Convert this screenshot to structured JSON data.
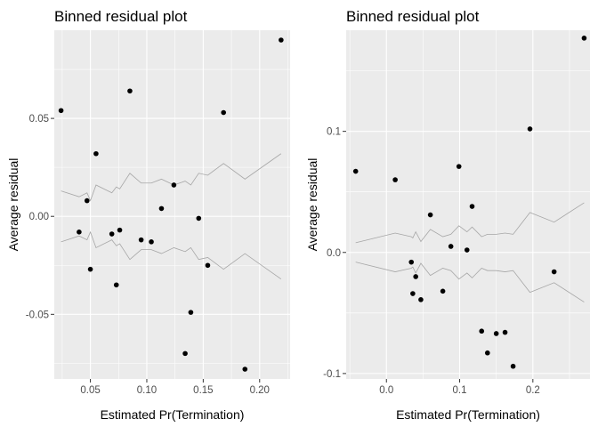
{
  "chart_data": [
    {
      "type": "scatter",
      "title": "Binned residual plot",
      "xlabel": "Estimated Pr(Termination)",
      "ylabel": "Average residual",
      "xlim": [
        0.018,
        0.227
      ],
      "ylim": [
        -0.083,
        0.095
      ],
      "xticks": [
        0.05,
        0.1,
        0.15,
        0.2
      ],
      "xtick_labels": [
        "0.05",
        "0.10",
        "0.15",
        "0.20"
      ],
      "yticks": [
        -0.05,
        0.0,
        0.05
      ],
      "ytick_labels": [
        "-0.05",
        "0.00",
        "0.05"
      ],
      "grid": true,
      "points": [
        {
          "x": 0.024,
          "y": 0.054
        },
        {
          "x": 0.04,
          "y": -0.008
        },
        {
          "x": 0.047,
          "y": 0.008
        },
        {
          "x": 0.05,
          "y": -0.027
        },
        {
          "x": 0.055,
          "y": 0.032
        },
        {
          "x": 0.069,
          "y": -0.009
        },
        {
          "x": 0.073,
          "y": -0.035
        },
        {
          "x": 0.076,
          "y": -0.007
        },
        {
          "x": 0.085,
          "y": 0.064
        },
        {
          "x": 0.095,
          "y": -0.012
        },
        {
          "x": 0.104,
          "y": -0.013
        },
        {
          "x": 0.113,
          "y": 0.004
        },
        {
          "x": 0.124,
          "y": 0.016
        },
        {
          "x": 0.134,
          "y": -0.07
        },
        {
          "x": 0.139,
          "y": -0.049
        },
        {
          "x": 0.146,
          "y": -0.001
        },
        {
          "x": 0.154,
          "y": -0.025
        },
        {
          "x": 0.168,
          "y": 0.053
        },
        {
          "x": 0.187,
          "y": -0.078
        },
        {
          "x": 0.219,
          "y": 0.09
        }
      ],
      "bounds": {
        "x": [
          0.024,
          0.04,
          0.047,
          0.05,
          0.055,
          0.069,
          0.073,
          0.076,
          0.085,
          0.095,
          0.104,
          0.113,
          0.124,
          0.134,
          0.139,
          0.146,
          0.154,
          0.168,
          0.187,
          0.219
        ],
        "upper": [
          0.013,
          0.01,
          0.012,
          0.008,
          0.016,
          0.012,
          0.015,
          0.014,
          0.022,
          0.017,
          0.017,
          0.019,
          0.016,
          0.018,
          0.016,
          0.022,
          0.021,
          0.027,
          0.019,
          0.032
        ],
        "lower": [
          -0.013,
          -0.01,
          -0.012,
          -0.008,
          -0.016,
          -0.012,
          -0.015,
          -0.014,
          -0.022,
          -0.017,
          -0.017,
          -0.019,
          -0.016,
          -0.018,
          -0.016,
          -0.022,
          -0.021,
          -0.027,
          -0.019,
          -0.032
        ]
      }
    },
    {
      "type": "scatter",
      "title": "Binned residual plot",
      "xlabel": "Estimated Pr(Termination)",
      "ylabel": "Average residual",
      "xlim": [
        -0.055,
        0.278
      ],
      "ylim": [
        -0.1045,
        0.1835
      ],
      "xticks": [
        0.0,
        0.1,
        0.2
      ],
      "xtick_labels": [
        "0.0",
        "0.1",
        "0.2"
      ],
      "yticks": [
        -0.1,
        0.0,
        0.1
      ],
      "ytick_labels": [
        "-0.1",
        "0.0",
        "0.1"
      ],
      "grid": true,
      "points": [
        {
          "x": -0.042,
          "y": 0.067
        },
        {
          "x": 0.012,
          "y": 0.06
        },
        {
          "x": 0.034,
          "y": -0.008
        },
        {
          "x": 0.036,
          "y": -0.034
        },
        {
          "x": 0.04,
          "y": -0.02
        },
        {
          "x": 0.047,
          "y": -0.039
        },
        {
          "x": 0.06,
          "y": 0.031
        },
        {
          "x": 0.077,
          "y": -0.032
        },
        {
          "x": 0.088,
          "y": 0.005
        },
        {
          "x": 0.099,
          "y": 0.071
        },
        {
          "x": 0.11,
          "y": 0.002
        },
        {
          "x": 0.117,
          "y": 0.038
        },
        {
          "x": 0.13,
          "y": -0.065
        },
        {
          "x": 0.138,
          "y": -0.083
        },
        {
          "x": 0.15,
          "y": -0.067
        },
        {
          "x": 0.162,
          "y": -0.066
        },
        {
          "x": 0.173,
          "y": -0.094
        },
        {
          "x": 0.196,
          "y": 0.102
        },
        {
          "x": 0.229,
          "y": -0.016
        },
        {
          "x": 0.27,
          "y": 0.177
        }
      ],
      "bounds": {
        "x": [
          -0.042,
          0.012,
          0.034,
          0.036,
          0.04,
          0.047,
          0.06,
          0.077,
          0.088,
          0.099,
          0.11,
          0.117,
          0.13,
          0.138,
          0.15,
          0.162,
          0.173,
          0.196,
          0.229,
          0.27
        ],
        "upper": [
          0.008,
          0.016,
          0.013,
          0.012,
          0.017,
          0.009,
          0.019,
          0.013,
          0.015,
          0.022,
          0.017,
          0.021,
          0.013,
          0.015,
          0.015,
          0.016,
          0.015,
          0.033,
          0.025,
          0.041
        ],
        "lower": [
          -0.008,
          -0.016,
          -0.013,
          -0.012,
          -0.017,
          -0.009,
          -0.019,
          -0.013,
          -0.015,
          -0.022,
          -0.017,
          -0.021,
          -0.013,
          -0.015,
          -0.015,
          -0.016,
          -0.015,
          -0.033,
          -0.025,
          -0.041
        ]
      }
    }
  ]
}
